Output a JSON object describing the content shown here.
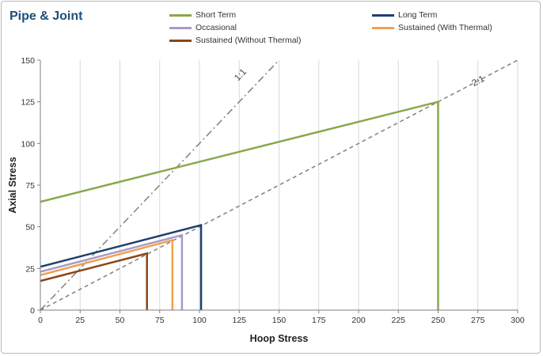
{
  "header": {
    "title": "Pipe & Joint"
  },
  "chart_data": {
    "type": "line",
    "xlabel": "Hoop Stress",
    "ylabel": "Axial Stress",
    "xlim": [
      0,
      300
    ],
    "ylim": [
      0,
      150
    ],
    "xticks": [
      0,
      25,
      50,
      75,
      100,
      125,
      150,
      175,
      200,
      225,
      250,
      275,
      300
    ],
    "yticks": [
      0,
      25,
      50,
      75,
      100,
      125,
      150
    ],
    "grid": "vertical",
    "legend_position": "top",
    "series": [
      {
        "name": "Short Term",
        "color": "#8aa84b",
        "points": [
          [
            0,
            65
          ],
          [
            250,
            125
          ],
          [
            250,
            0
          ]
        ]
      },
      {
        "name": "Long Term",
        "color": "#1f3f6e",
        "points": [
          [
            0,
            26
          ],
          [
            101,
            51
          ],
          [
            101,
            0
          ]
        ]
      },
      {
        "name": "Occasional",
        "color": "#a99ac8",
        "points": [
          [
            0,
            23
          ],
          [
            89,
            45
          ],
          [
            89,
            0
          ]
        ]
      },
      {
        "name": "Sustained (With Thermal)",
        "color": "#f0a050",
        "points": [
          [
            0,
            21
          ],
          [
            83,
            42
          ],
          [
            83,
            0
          ]
        ]
      },
      {
        "name": "Sustained (Without Thermal)",
        "color": "#8b4513",
        "points": [
          [
            0,
            17.5
          ],
          [
            67,
            34
          ],
          [
            67,
            0
          ]
        ]
      }
    ],
    "reference_lines": [
      {
        "label": "1:1",
        "ratio": 1,
        "color": "#808080",
        "style": "dash-dot"
      },
      {
        "label": "2:1",
        "ratio": 2,
        "color": "#808080",
        "style": "dashed"
      }
    ]
  }
}
